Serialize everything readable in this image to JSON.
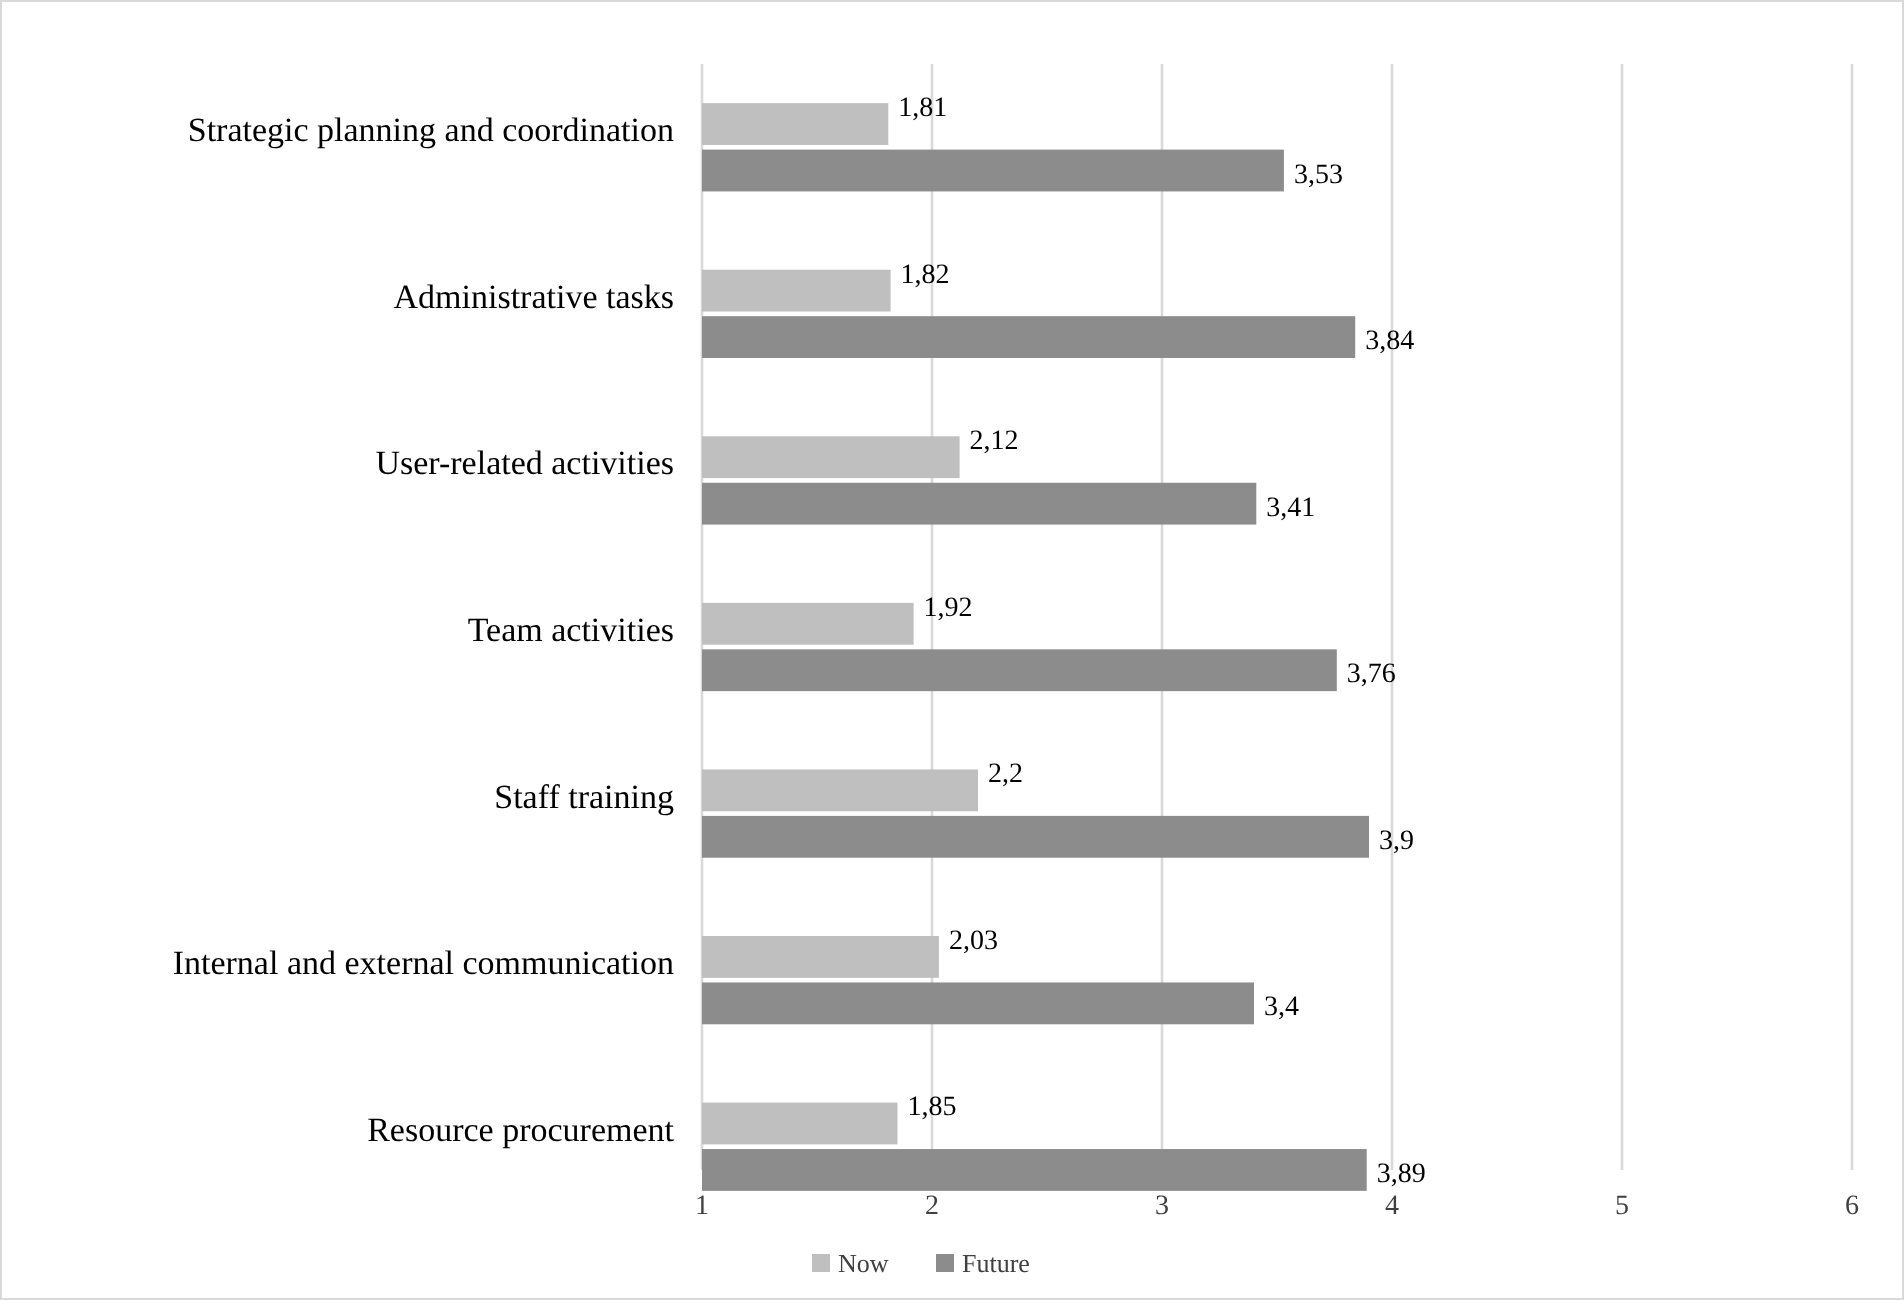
{
  "chart_data": {
    "type": "bar",
    "orientation": "horizontal",
    "categories": [
      "Strategic planning and coordination",
      "Administrative tasks",
      "User-related activities",
      "Team activities",
      "Staff training",
      "Internal and external communication",
      "Resource procurement"
    ],
    "series": [
      {
        "name": "Now",
        "color": "#bfbfbf",
        "values": [
          1.81,
          1.82,
          2.12,
          1.92,
          2.2,
          2.03,
          1.85
        ],
        "value_labels": [
          "1,81",
          "1,82",
          "2,12",
          "1,92",
          "2,2",
          "2,03",
          "1,85"
        ]
      },
      {
        "name": "Future",
        "color": "#8c8c8c",
        "values": [
          3.53,
          3.84,
          3.41,
          3.76,
          3.9,
          3.4,
          3.89
        ],
        "value_labels": [
          "3,53",
          "3,84",
          "3,41",
          "3,76",
          "3,9",
          "3,4",
          "3,89"
        ]
      }
    ],
    "xlim": [
      1,
      6
    ],
    "xticks": [
      1,
      2,
      3,
      4,
      5,
      6
    ],
    "grid": "x",
    "legend": "bottom"
  }
}
